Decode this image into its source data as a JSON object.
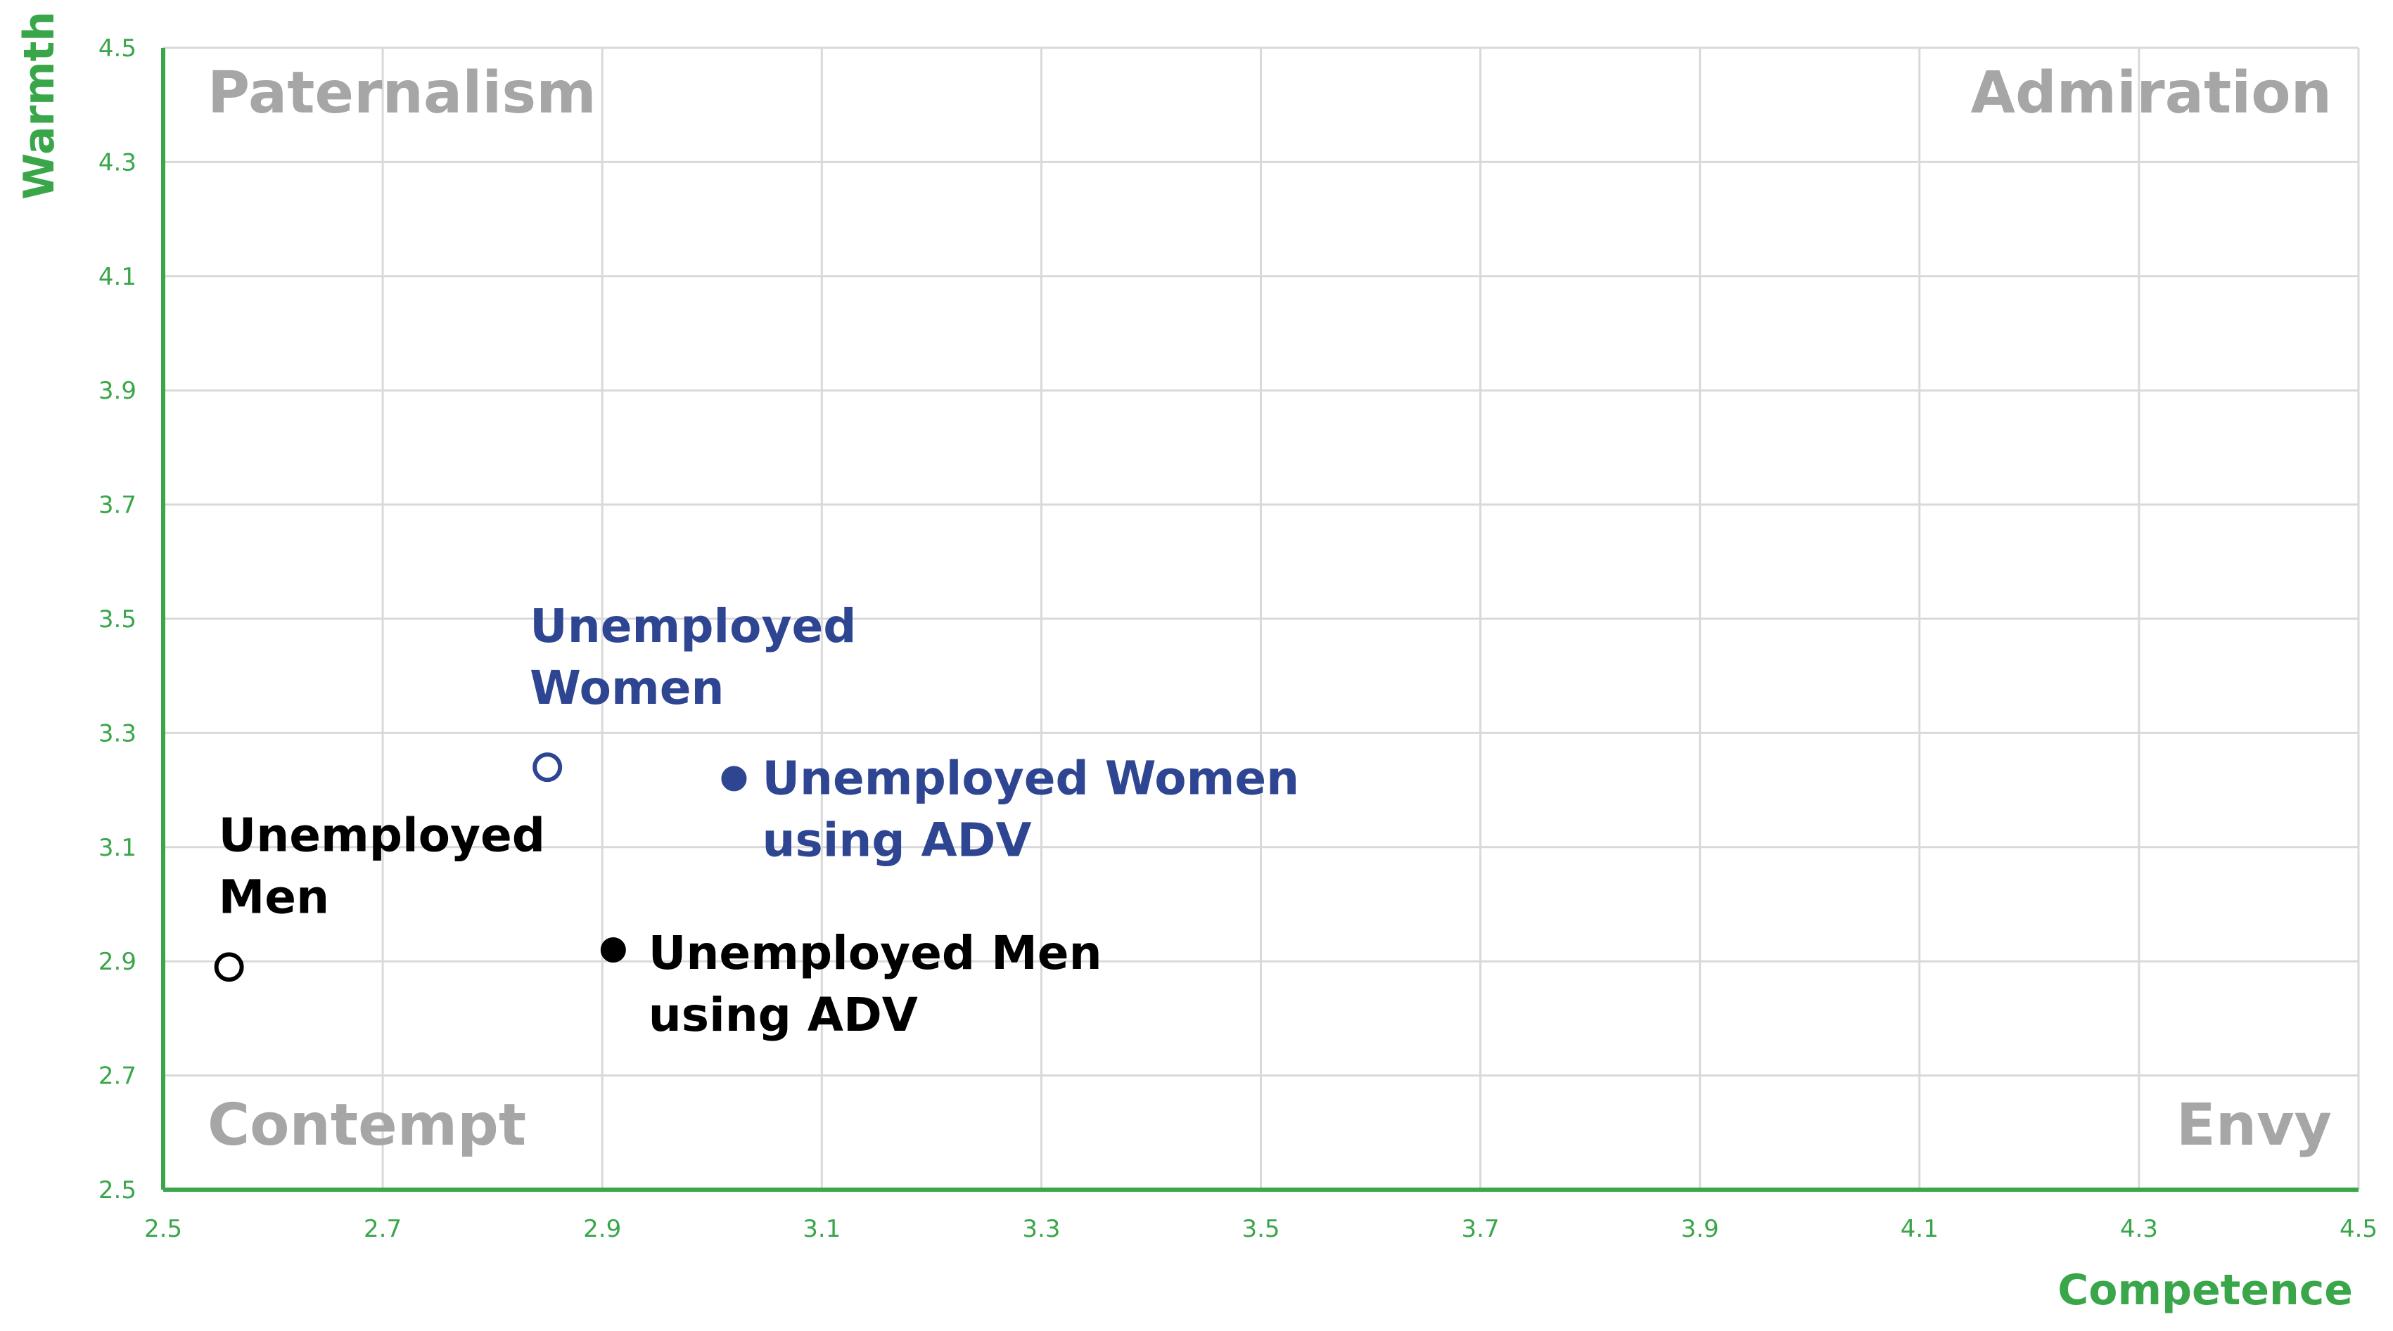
{
  "chart_data": {
    "type": "scatter",
    "title": "",
    "xlabel": "Competence",
    "ylabel": "Warmth",
    "xlim": [
      2.5,
      4.5
    ],
    "ylim": [
      2.5,
      4.5
    ],
    "x_ticks": [
      "2.5",
      "2.7",
      "2.9",
      "3.1",
      "3.3",
      "3.5",
      "3.7",
      "3.9",
      "4.1",
      "4.3",
      "4.5"
    ],
    "y_ticks": [
      "2.5",
      "2.7",
      "2.9",
      "3.1",
      "3.3",
      "3.5",
      "3.7",
      "3.9",
      "4.1",
      "4.3",
      "4.5"
    ],
    "grid": true,
    "axis_color": "#3aa64a",
    "quadrant_labels": {
      "top_left": "Paternalism",
      "top_right": "Admiration",
      "bottom_left": "Contempt",
      "bottom_right": "Envy"
    },
    "points": [
      {
        "label_lines": [
          "Unemployed",
          "Women"
        ],
        "x": 2.85,
        "y": 3.24,
        "marker": "open",
        "color": "#2e4592"
      },
      {
        "label_lines": [
          "Unemployed Women",
          "using ADV"
        ],
        "x": 3.02,
        "y": 3.22,
        "marker": "filled",
        "color": "#2e4592"
      },
      {
        "label_lines": [
          "Unemployed",
          "Men"
        ],
        "x": 2.56,
        "y": 2.89,
        "marker": "open",
        "color": "#000000"
      },
      {
        "label_lines": [
          "Unemployed Men",
          "using ADV"
        ],
        "x": 2.91,
        "y": 2.92,
        "marker": "filled",
        "color": "#000000"
      }
    ]
  }
}
